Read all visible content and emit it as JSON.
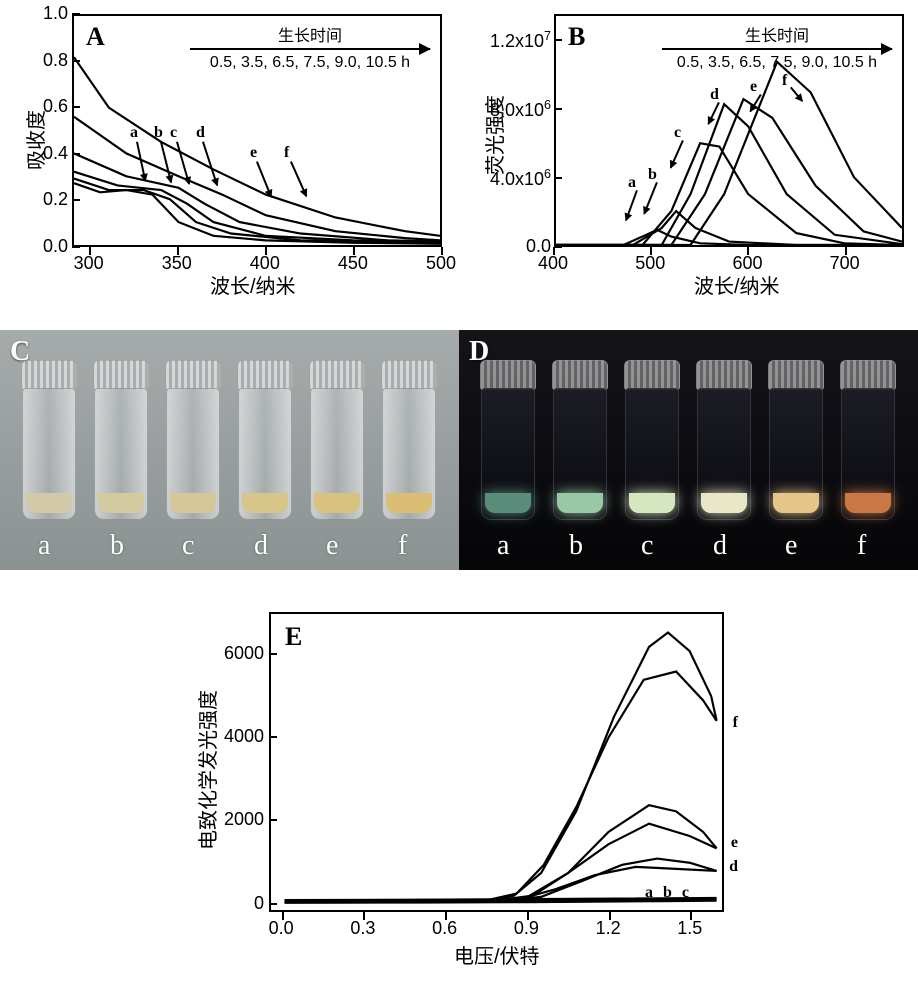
{
  "figure": {
    "panelA": {
      "letter": "A",
      "type": "line",
      "xlabel": "波长/纳米",
      "ylabel": "吸收度",
      "xlim": [
        290,
        500
      ],
      "ylim": [
        0.0,
        1.0
      ],
      "xticks": [
        300,
        350,
        400,
        450,
        500
      ],
      "yticks": [
        0.0,
        0.2,
        0.4,
        0.6,
        0.8,
        1.0
      ],
      "legend_title": "生长时间",
      "legend_values": "0.5, 3.5, 6.5, 7.5, 9.0, 10.5 h",
      "line_color": "#000000",
      "line_width": 2.2,
      "tick_fontsize": 18,
      "label_fontsize": 20,
      "curve_labels": [
        "a",
        "b",
        "c",
        "d",
        "e",
        "f"
      ],
      "series": {
        "a": [
          [
            290,
            0.27
          ],
          [
            305,
            0.23
          ],
          [
            320,
            0.24
          ],
          [
            335,
            0.22
          ],
          [
            350,
            0.1
          ],
          [
            370,
            0.04
          ],
          [
            400,
            0.02
          ],
          [
            450,
            0.01
          ],
          [
            500,
            0.005
          ]
        ],
        "b": [
          [
            290,
            0.29
          ],
          [
            310,
            0.24
          ],
          [
            330,
            0.24
          ],
          [
            345,
            0.2
          ],
          [
            360,
            0.1
          ],
          [
            380,
            0.05
          ],
          [
            420,
            0.02
          ],
          [
            500,
            0.008
          ]
        ],
        "c": [
          [
            290,
            0.32
          ],
          [
            315,
            0.26
          ],
          [
            340,
            0.24
          ],
          [
            355,
            0.18
          ],
          [
            370,
            0.1
          ],
          [
            400,
            0.04
          ],
          [
            450,
            0.02
          ],
          [
            500,
            0.01
          ]
        ],
        "d": [
          [
            290,
            0.4
          ],
          [
            320,
            0.3
          ],
          [
            350,
            0.25
          ],
          [
            365,
            0.18
          ],
          [
            385,
            0.1
          ],
          [
            420,
            0.05
          ],
          [
            470,
            0.02
          ],
          [
            500,
            0.015
          ]
        ],
        "e": [
          [
            290,
            0.56
          ],
          [
            320,
            0.4
          ],
          [
            350,
            0.3
          ],
          [
            375,
            0.22
          ],
          [
            400,
            0.13
          ],
          [
            440,
            0.06
          ],
          [
            480,
            0.03
          ],
          [
            500,
            0.02
          ]
        ],
        "f": [
          [
            290,
            0.82
          ],
          [
            310,
            0.6
          ],
          [
            340,
            0.45
          ],
          [
            370,
            0.33
          ],
          [
            400,
            0.22
          ],
          [
            440,
            0.12
          ],
          [
            480,
            0.06
          ],
          [
            500,
            0.04
          ]
        ]
      }
    },
    "panelB": {
      "letter": "B",
      "type": "line",
      "xlabel": "波长/纳米",
      "ylabel": "荧光强度",
      "xlim": [
        400,
        760
      ],
      "ylim": [
        0,
        13500000.0
      ],
      "xticks": [
        400,
        500,
        600,
        700
      ],
      "yticks": [
        0,
        4000000.0,
        8000000.0,
        12000000.0
      ],
      "ytick_labels": [
        "0.0",
        "4.0x10⁶",
        "8.0x10⁶",
        "1.2x10⁷"
      ],
      "legend_title": "生长时间",
      "legend_values": "0.5, 3.5, 6.5, 7.5, 9.0, 10.5 h",
      "line_color": "#000000",
      "line_width": 2.2,
      "curve_labels": [
        "a",
        "b",
        "c",
        "d",
        "e",
        "f"
      ],
      "series": {
        "a": [
          [
            400,
            0
          ],
          [
            470,
            0
          ],
          [
            490,
            500000.0
          ],
          [
            505,
            900000.0
          ],
          [
            520,
            500000.0
          ],
          [
            550,
            100000.0
          ],
          [
            600,
            0
          ],
          [
            760,
            0
          ]
        ],
        "b": [
          [
            400,
            0
          ],
          [
            480,
            0
          ],
          [
            510,
            1000000.0
          ],
          [
            525,
            2000000.0
          ],
          [
            545,
            1000000.0
          ],
          [
            580,
            200000.0
          ],
          [
            650,
            0
          ],
          [
            760,
            0
          ]
        ],
        "c": [
          [
            400,
            0
          ],
          [
            490,
            0
          ],
          [
            520,
            2000000.0
          ],
          [
            550,
            6000000.0
          ],
          [
            570,
            5800000.0
          ],
          [
            600,
            3000000.0
          ],
          [
            650,
            700000.0
          ],
          [
            700,
            100000.0
          ],
          [
            760,
            0
          ]
        ],
        "d": [
          [
            400,
            0
          ],
          [
            510,
            0
          ],
          [
            540,
            3000000.0
          ],
          [
            575,
            8300000.0
          ],
          [
            600,
            7000000.0
          ],
          [
            640,
            3000000.0
          ],
          [
            690,
            600000.0
          ],
          [
            760,
            50000.0
          ]
        ],
        "e": [
          [
            400,
            0
          ],
          [
            520,
            0
          ],
          [
            555,
            3000000.0
          ],
          [
            595,
            8600000.0
          ],
          [
            625,
            7500000.0
          ],
          [
            670,
            3500000.0
          ],
          [
            720,
            800000.0
          ],
          [
            760,
            200000.0
          ]
        ],
        "f": [
          [
            400,
            0
          ],
          [
            540,
            0
          ],
          [
            575,
            3000000.0
          ],
          [
            630,
            10800000.0
          ],
          [
            665,
            9000000.0
          ],
          [
            710,
            4000000.0
          ],
          [
            760,
            1000000.0
          ]
        ]
      }
    },
    "panelC": {
      "letter": "C",
      "type": "photo",
      "background": "#9aa0a0",
      "vials": [
        "a",
        "b",
        "c",
        "d",
        "e",
        "f"
      ],
      "cap_color": "#d8d8d8",
      "body_bg": "linear-gradient(90deg, rgba(255,255,255,0.55), rgba(200,205,205,0.35), rgba(255,255,255,0.55))",
      "liquid_colors": [
        "#d2c9a9",
        "#d4caa0",
        "#d6c896",
        "#d8c58a",
        "#d9c17e",
        "#d9be73"
      ],
      "label_color": "#ffffff"
    },
    "panelD": {
      "letter": "D",
      "type": "photo",
      "background": "#0a0a0e",
      "vials": [
        "a",
        "b",
        "c",
        "d",
        "e",
        "f"
      ],
      "cap_color": "#d8d8d8",
      "body_bg": "linear-gradient(180deg, rgba(30,30,40,0.9), rgba(10,10,15,0.95))",
      "liquid_colors": [
        "#5a8c7a",
        "#9ac7a6",
        "#d6e6c0",
        "#e9e7c8",
        "#e6c58a",
        "#c97846"
      ],
      "label_color": "#ffffff"
    },
    "panelE": {
      "letter": "E",
      "type": "line",
      "xlabel": "电压/伏特",
      "ylabel": "电致化学发光强度",
      "xlim": [
        -0.05,
        1.62
      ],
      "ylim": [
        -200,
        7000
      ],
      "xticks": [
        0.0,
        0.3,
        0.6,
        0.9,
        1.2,
        1.5
      ],
      "yticks": [
        0,
        2000,
        4000,
        6000
      ],
      "line_color": "#000000",
      "line_width": 2.2,
      "curve_labels_right": [
        "f",
        "e",
        "d",
        "a b c"
      ],
      "series": {
        "abc_fwd": [
          [
            0,
            10
          ],
          [
            0.5,
            15
          ],
          [
            0.9,
            25
          ],
          [
            1.2,
            40
          ],
          [
            1.5,
            55
          ],
          [
            1.6,
            60
          ]
        ],
        "abc_rev": [
          [
            1.6,
            60
          ],
          [
            1.4,
            50
          ],
          [
            1.0,
            35
          ],
          [
            0.6,
            20
          ],
          [
            0.2,
            12
          ],
          [
            0,
            10
          ]
        ],
        "d_fwd": [
          [
            0,
            10
          ],
          [
            0.8,
            20
          ],
          [
            0.95,
            120
          ],
          [
            1.1,
            500
          ],
          [
            1.25,
            900
          ],
          [
            1.38,
            1050
          ],
          [
            1.5,
            950
          ],
          [
            1.6,
            750
          ]
        ],
        "d_rev": [
          [
            1.6,
            750
          ],
          [
            1.45,
            800
          ],
          [
            1.3,
            850
          ],
          [
            1.15,
            650
          ],
          [
            1.0,
            300
          ],
          [
            0.88,
            80
          ],
          [
            0.7,
            25
          ],
          [
            0.3,
            12
          ],
          [
            0,
            10
          ]
        ],
        "e_fwd": [
          [
            0,
            10
          ],
          [
            0.8,
            20
          ],
          [
            0.9,
            120
          ],
          [
            1.05,
            700
          ],
          [
            1.2,
            1700
          ],
          [
            1.35,
            2350
          ],
          [
            1.45,
            2200
          ],
          [
            1.55,
            1700
          ],
          [
            1.6,
            1300
          ]
        ],
        "e_rev": [
          [
            1.6,
            1300
          ],
          [
            1.5,
            1600
          ],
          [
            1.35,
            1900
          ],
          [
            1.2,
            1400
          ],
          [
            1.05,
            700
          ],
          [
            0.92,
            150
          ],
          [
            0.78,
            30
          ],
          [
            0.4,
            12
          ],
          [
            0,
            10
          ]
        ],
        "f_fwd": [
          [
            0,
            10
          ],
          [
            0.75,
            20
          ],
          [
            0.85,
            150
          ],
          [
            0.95,
            700
          ],
          [
            1.08,
            2200
          ],
          [
            1.22,
            4500
          ],
          [
            1.35,
            6200
          ],
          [
            1.42,
            6550
          ],
          [
            1.5,
            6100
          ],
          [
            1.58,
            5000
          ],
          [
            1.6,
            4400
          ]
        ],
        "f_rev": [
          [
            1.6,
            4400
          ],
          [
            1.55,
            4900
          ],
          [
            1.45,
            5600
          ],
          [
            1.33,
            5400
          ],
          [
            1.2,
            4000
          ],
          [
            1.08,
            2300
          ],
          [
            0.96,
            900
          ],
          [
            0.86,
            200
          ],
          [
            0.75,
            40
          ],
          [
            0.4,
            15
          ],
          [
            0,
            10
          ]
        ]
      }
    },
    "colors": {
      "frame": "#000000",
      "background": "#ffffff"
    }
  }
}
